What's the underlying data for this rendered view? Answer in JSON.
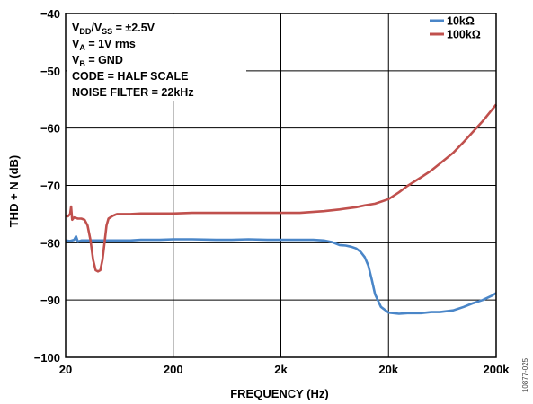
{
  "chart_data": {
    "type": "line",
    "xlabel": "FREQUENCY (Hz)",
    "ylabel": "THD + N (dB)",
    "x_scale": "log",
    "xlim": [
      20,
      200000
    ],
    "ylim": [
      -100,
      -40
    ],
    "x_ticks": [
      "20",
      "200",
      "2k",
      "20k",
      "200k"
    ],
    "y_ticks": [
      "−100",
      "−90",
      "−80",
      "−70",
      "−60",
      "−50",
      "−40"
    ],
    "grid": true,
    "legend_position": "top-right",
    "annotations": [
      "V_DD/V_SS = ±2.5V",
      "V_A = 1V rms",
      "V_B = GND",
      "CODE = HALF SCALE",
      "NOISE FILTER = 22kHz"
    ],
    "side_code": "10877-025",
    "series": [
      {
        "name": "10kΩ",
        "color": "#4a86c8",
        "x": [
          20,
          22,
          24,
          25,
          26,
          28,
          30,
          35,
          40,
          50,
          60,
          80,
          100,
          150,
          200,
          300,
          500,
          700,
          1000,
          1500,
          2000,
          3000,
          4000,
          5000,
          6000,
          7000,
          8000,
          9000,
          10000,
          11000,
          12000,
          13000,
          14000,
          15000,
          17000,
          20000,
          25000,
          30000,
          40000,
          50000,
          60000,
          80000,
          100000,
          120000,
          150000,
          180000,
          200000
        ],
        "y": [
          -79.6,
          -79.7,
          -79.5,
          -78.9,
          -79.8,
          -79.6,
          -79.6,
          -79.6,
          -79.6,
          -79.6,
          -79.6,
          -79.6,
          -79.5,
          -79.5,
          -79.4,
          -79.4,
          -79.5,
          -79.5,
          -79.4,
          -79.5,
          -79.5,
          -79.5,
          -79.5,
          -79.6,
          -79.9,
          -80.4,
          -80.5,
          -80.7,
          -81.0,
          -81.6,
          -82.5,
          -84.0,
          -86.5,
          -89.0,
          -91.2,
          -92.2,
          -92.4,
          -92.3,
          -92.3,
          -92.1,
          -92.1,
          -91.8,
          -91.2,
          -90.6,
          -90.0,
          -89.3,
          -88.8
        ]
      },
      {
        "name": "100kΩ",
        "color": "#c0504d",
        "x": [
          20,
          21,
          22,
          22.5,
          23,
          24,
          26,
          28,
          30,
          32,
          34,
          36,
          38,
          40,
          42,
          44,
          46,
          48,
          50,
          55,
          60,
          80,
          100,
          150,
          200,
          300,
          500,
          1000,
          2000,
          3000,
          5000,
          7000,
          10000,
          12000,
          15000,
          20000,
          25000,
          30000,
          40000,
          50000,
          60000,
          80000,
          100000,
          150000,
          200000
        ],
        "y": [
          -75.3,
          -75.4,
          -75.0,
          -73.7,
          -76.0,
          -75.6,
          -75.8,
          -75.8,
          -76.0,
          -77.0,
          -79.5,
          -83.0,
          -84.8,
          -85.0,
          -84.8,
          -83.0,
          -80.0,
          -77.0,
          -75.8,
          -75.3,
          -75.0,
          -75.0,
          -74.9,
          -74.9,
          -74.9,
          -74.8,
          -74.8,
          -74.8,
          -74.8,
          -74.8,
          -74.5,
          -74.2,
          -73.8,
          -73.5,
          -73.2,
          -72.4,
          -71.2,
          -70.1,
          -68.6,
          -67.4,
          -66.2,
          -64.3,
          -62.4,
          -58.8,
          -55.9
        ]
      }
    ]
  }
}
